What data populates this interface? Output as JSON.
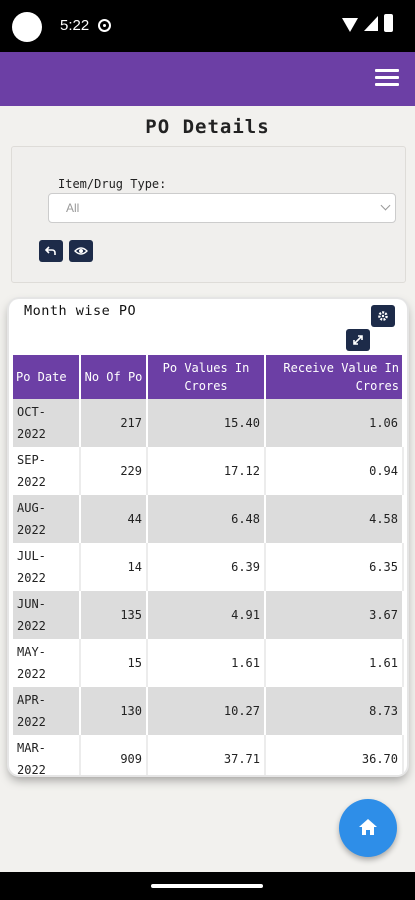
{
  "status_bar": {
    "time": "5:22"
  },
  "page": {
    "title": "PO Details"
  },
  "filter": {
    "label": "Item/Drug Type:",
    "selected_value": "All"
  },
  "card": {
    "title": "Month wise PO",
    "columns": {
      "po_date": "Po Date",
      "no_of_po": "No Of Po",
      "po_values": "Po Values In Crores",
      "receive_value": "Receive Value In Crores"
    },
    "rows": [
      {
        "month": "OCT-",
        "year": "2022",
        "no_of_po": "217",
        "po_value": "15.40",
        "receive_value": "1.06"
      },
      {
        "month": "SEP-",
        "year": "2022",
        "no_of_po": "229",
        "po_value": "17.12",
        "receive_value": "0.94"
      },
      {
        "month": "AUG-",
        "year": "2022",
        "no_of_po": "44",
        "po_value": "6.48",
        "receive_value": "4.58"
      },
      {
        "month": "JUL-",
        "year": "2022",
        "no_of_po": "14",
        "po_value": "6.39",
        "receive_value": "6.35"
      },
      {
        "month": "JUN-",
        "year": "2022",
        "no_of_po": "135",
        "po_value": "4.91",
        "receive_value": "3.67"
      },
      {
        "month": "MAY-",
        "year": "2022",
        "no_of_po": "15",
        "po_value": "1.61",
        "receive_value": "1.61"
      },
      {
        "month": "APR-",
        "year": "2022",
        "no_of_po": "130",
        "po_value": "10.27",
        "receive_value": "8.73"
      },
      {
        "month": "MAR-",
        "year": "2022",
        "no_of_po": "909",
        "po_value": "37.71",
        "receive_value": "36.70"
      }
    ]
  },
  "icons": {
    "menu": "menu-icon",
    "back": "back-arrow-icon",
    "view": "eye-icon",
    "settings": "gear-icon",
    "expand": "expand-icon",
    "home": "home-icon"
  },
  "colors": {
    "app_bar": "#6c3fa5",
    "table_header": "#6c3fa5",
    "button_dark": "#1d2b49",
    "fab": "#2e8ee8"
  }
}
